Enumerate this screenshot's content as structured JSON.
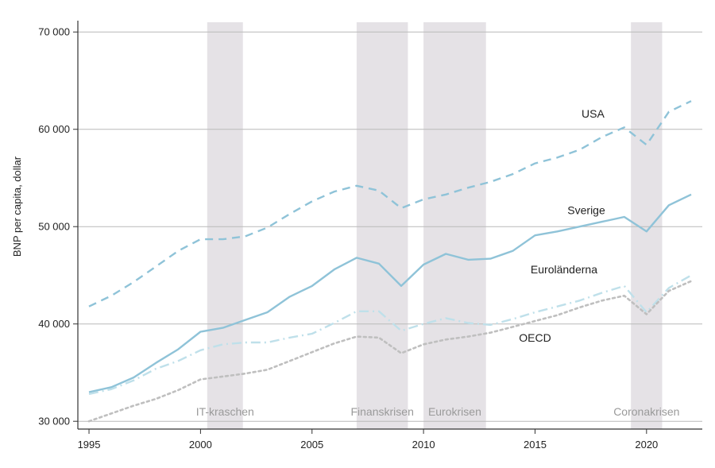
{
  "chart_data": {
    "type": "line",
    "title": "",
    "xlabel": "",
    "ylabel": "BNP per capita, dollar",
    "xlim": [
      1994.5,
      2022.5
    ],
    "ylim": [
      29200,
      71000
    ],
    "x_ticks": [
      1995,
      2000,
      2005,
      2010,
      2015,
      2020
    ],
    "y_ticks": [
      {
        "value": 30000,
        "label": "30 000"
      },
      {
        "value": 40000,
        "label": "40 000"
      },
      {
        "value": 50000,
        "label": "50 000"
      },
      {
        "value": 60000,
        "label": "60 000"
      },
      {
        "value": 70000,
        "label": "70 000"
      }
    ],
    "grid": "horizontal",
    "x": [
      1995,
      1996,
      1997,
      1998,
      1999,
      2000,
      2001,
      2002,
      2003,
      2004,
      2005,
      2006,
      2007,
      2008,
      2009,
      2010,
      2011,
      2012,
      2013,
      2014,
      2015,
      2016,
      2017,
      2018,
      2019,
      2020,
      2021,
      2022
    ],
    "series": [
      {
        "name": "USA",
        "style": "dashed",
        "color": "#8fc3d8",
        "values": [
          41800,
          42900,
          44300,
          45900,
          47500,
          48700,
          48700,
          49000,
          49900,
          51300,
          52600,
          53600,
          54200,
          53700,
          51900,
          52800,
          53300,
          54000,
          54600,
          55400,
          56500,
          57100,
          57900,
          59200,
          60200,
          58400,
          61800,
          62900
        ]
      },
      {
        "name": "Sverige",
        "style": "solid",
        "color": "#8fc3d8",
        "values": [
          33000,
          33500,
          34500,
          36000,
          37400,
          39200,
          39600,
          40400,
          41200,
          42800,
          43900,
          45600,
          46800,
          46200,
          43900,
          46100,
          47200,
          46600,
          46700,
          47500,
          49100,
          49500,
          50000,
          50500,
          51000,
          49500,
          52200,
          53300
        ]
      },
      {
        "name": "Euroländerna",
        "style": "dashdot",
        "color": "#bfe0ea",
        "values": [
          32800,
          33300,
          34200,
          35400,
          36200,
          37300,
          37900,
          38100,
          38100,
          38600,
          39000,
          40100,
          41300,
          41300,
          39300,
          40000,
          40600,
          40100,
          39900,
          40500,
          41200,
          41800,
          42400,
          43200,
          43900,
          41200,
          43700,
          45000
        ]
      },
      {
        "name": "OECD",
        "style": "dotted",
        "color": "#bfbfbf",
        "values": [
          30000,
          30800,
          31600,
          32300,
          33200,
          34300,
          34600,
          34900,
          35300,
          36200,
          37100,
          38000,
          38700,
          38600,
          37000,
          37900,
          38400,
          38700,
          39100,
          39700,
          40300,
          40900,
          41700,
          42400,
          42900,
          41000,
          43400,
          44400
        ]
      }
    ],
    "series_label_anchors": {
      "USA": {
        "x": 2017.6,
        "y": 61200
      },
      "Sverige": {
        "x": 2017.3,
        "y": 51300
      },
      "Euroländerna": {
        "x": 2016.3,
        "y": 45200
      },
      "OECD": {
        "x": 2015.0,
        "y": 38200
      }
    },
    "shaded_periods": [
      {
        "label": "IT-kraschen",
        "start": 2000.3,
        "end": 2001.9
      },
      {
        "label": "Finanskrisen",
        "start": 2007.0,
        "end": 2009.3
      },
      {
        "label": "Eurokrisen",
        "start": 2010.0,
        "end": 2012.8
      },
      {
        "label": "Coronakrisen",
        "start": 2019.3,
        "end": 2020.7
      }
    ],
    "shaded_color": "#e5e2e6"
  }
}
